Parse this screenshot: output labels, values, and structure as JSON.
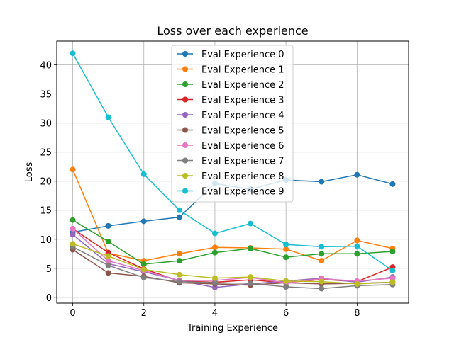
{
  "chart_data": {
    "type": "line",
    "title": "Loss over each experience",
    "xlabel": "Training Experience",
    "ylabel": "Loss",
    "xlim": [
      -0.45,
      9.45
    ],
    "ylim": [
      -1.0,
      44.1
    ],
    "x_ticks": [
      0,
      2,
      4,
      6,
      8
    ],
    "y_ticks": [
      0,
      5,
      10,
      15,
      20,
      25,
      30,
      35,
      40
    ],
    "grid": true,
    "legend_position": "upper-center",
    "x": [
      0,
      1,
      2,
      3,
      4,
      5,
      6,
      7,
      8,
      9
    ],
    "series": [
      {
        "name": "Eval Experience 0",
        "color": "#1f77b4",
        "values": [
          11.2,
          12.3,
          13.1,
          13.8,
          19.6,
          18.6,
          20.2,
          19.9,
          21.1,
          19.5
        ]
      },
      {
        "name": "Eval Experience 1",
        "color": "#ff7f0e",
        "values": [
          22.0,
          7.6,
          6.3,
          7.5,
          8.6,
          8.5,
          8.3,
          6.3,
          9.8,
          8.4
        ]
      },
      {
        "name": "Eval Experience 2",
        "color": "#2ca02c",
        "values": [
          13.3,
          9.6,
          5.7,
          6.3,
          7.7,
          8.4,
          6.9,
          7.5,
          7.5,
          7.9
        ]
      },
      {
        "name": "Eval Experience 3",
        "color": "#d62728",
        "values": [
          11.8,
          7.7,
          4.9,
          2.8,
          2.6,
          3.0,
          2.5,
          3.1,
          2.7,
          5.2
        ]
      },
      {
        "name": "Eval Experience 4",
        "color": "#9467bd",
        "values": [
          10.8,
          5.8,
          4.4,
          2.9,
          1.7,
          2.3,
          2.8,
          3.3,
          2.6,
          3.5
        ]
      },
      {
        "name": "Eval Experience 5",
        "color": "#8c564b",
        "values": [
          8.2,
          4.2,
          3.6,
          2.5,
          2.3,
          2.1,
          2.5,
          2.3,
          2.4,
          2.6
        ]
      },
      {
        "name": "Eval Experience 6",
        "color": "#e377c2",
        "values": [
          11.8,
          6.3,
          4.6,
          2.9,
          2.9,
          3.4,
          2.5,
          3.2,
          2.8,
          3.3
        ]
      },
      {
        "name": "Eval Experience 7",
        "color": "#7f7f7f",
        "values": [
          8.7,
          5.5,
          3.4,
          2.7,
          2.5,
          2.4,
          1.8,
          1.5,
          2.0,
          2.2
        ]
      },
      {
        "name": "Eval Experience 8",
        "color": "#bcbd22",
        "values": [
          9.2,
          7.1,
          4.8,
          3.9,
          3.3,
          3.5,
          2.8,
          2.7,
          2.3,
          2.6
        ]
      },
      {
        "name": "Eval Experience 9",
        "color": "#17becf",
        "values": [
          42.0,
          31.0,
          21.2,
          15.0,
          11.0,
          12.7,
          9.1,
          8.7,
          8.8,
          4.6
        ]
      }
    ]
  }
}
